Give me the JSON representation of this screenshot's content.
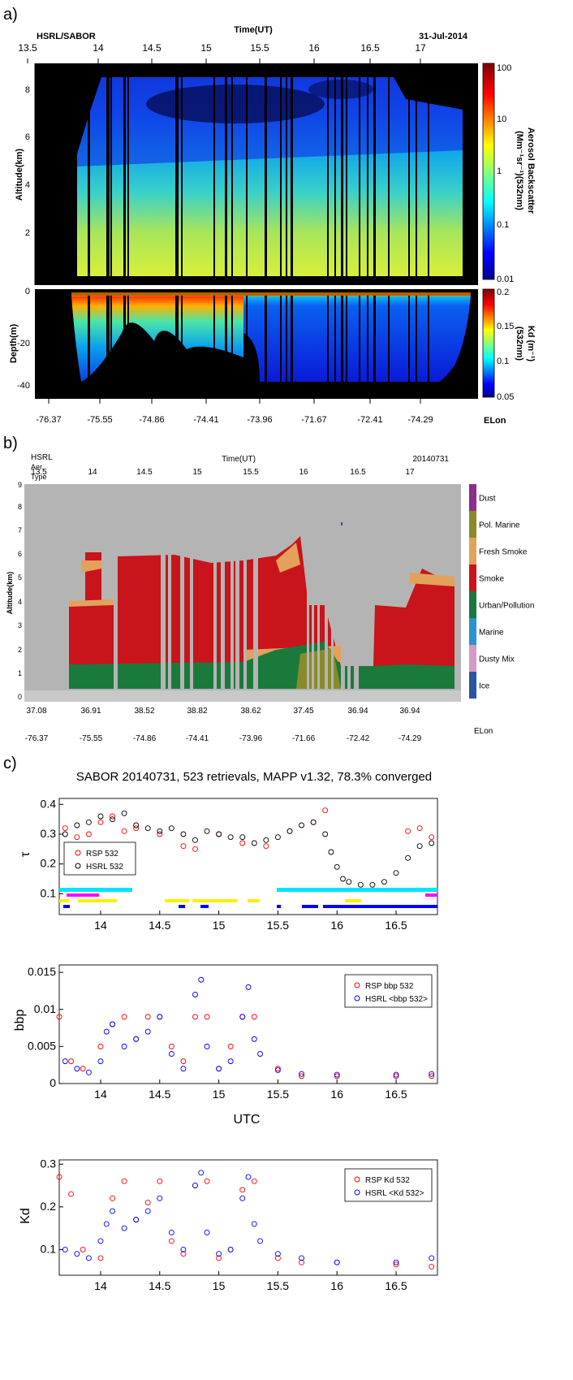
{
  "panels": {
    "a": {
      "letter": "a)",
      "corner_left": "HSRL/SABOR",
      "time_title": "Time(UT)",
      "date": "31-Jul-2014",
      "time_ticks": [
        "13.5",
        "14",
        "14.5",
        "15",
        "15.5",
        "16",
        "16.5",
        "17"
      ],
      "alt_ylabel": "Altitude(km)",
      "alt_ticks": [
        "2",
        "4",
        "6",
        "8"
      ],
      "depth_ylabel": "Depth(m)",
      "depth_ticks": [
        "0",
        "-20",
        "-40"
      ],
      "lon_ticks": [
        "-76.37",
        "-75.55",
        "-74.86",
        "-74.41",
        "-73.96",
        "-71.67",
        "-72.41",
        "-74.29"
      ],
      "lon_label": "ELon",
      "cb1_ticks": [
        "100",
        "10",
        "1",
        "0.1",
        "0.01"
      ],
      "cb1_label_1": "Aerosol Backscatter",
      "cb1_label_2": "(Mm⁻¹sr⁻¹)(532nm)",
      "cb2_ticks": [
        "0.2",
        "0.15",
        "0.1",
        "0.05"
      ],
      "cb2_label_1": "Kd (m⁻¹)",
      "cb2_label_2": "(532nm)"
    },
    "b": {
      "letter": "b)",
      "corner_1": "HSRL",
      "corner_2": "Aer.",
      "corner_3": "Type",
      "time_title": "Time(UT)",
      "date": "20140731",
      "time_ticks": [
        "13.5",
        "14",
        "14.5",
        "15",
        "15.5",
        "16",
        "16.5",
        "17"
      ],
      "alt_ylabel": "Altitude(km)",
      "alt_ticks": [
        "0",
        "1",
        "2",
        "3",
        "4",
        "5",
        "6",
        "7",
        "8",
        "9"
      ],
      "lat_ticks": [
        "37.08",
        "36.91",
        "38.52",
        "38.82",
        "38.62",
        "37.45",
        "36.94",
        "36.94"
      ],
      "lon_ticks": [
        "-76.37",
        "-75.55",
        "-74.86",
        "-74.41",
        "-73.96",
        "-71.66",
        "-72.42",
        "-74.29"
      ],
      "lon_label": "ELon",
      "types": [
        {
          "name": "Dust",
          "color": "#8d2c8d"
        },
        {
          "name": "Pol. Marine",
          "color": "#8a8a2a"
        },
        {
          "name": "Fresh Smoke",
          "color": "#e3a15a"
        },
        {
          "name": "Smoke",
          "color": "#c8141a"
        },
        {
          "name": "Urban/Pollution",
          "color": "#1a7a3c"
        },
        {
          "name": "Marine",
          "color": "#2a93d0"
        },
        {
          "name": "Dusty Mix",
          "color": "#d89ac2"
        },
        {
          "name": "Ice",
          "color": "#2a56a0"
        }
      ]
    },
    "c": {
      "letter": "c)",
      "title": "SABOR 20140731, 523 retrievals, MAPP v1.32, 78.3% converged",
      "tau": {
        "ylabel": "τ",
        "yticks": [
          "0.1",
          "0.2",
          "0.3",
          "0.4"
        ],
        "legend": [
          "RSP 532",
          "HSRL 532"
        ]
      },
      "bbp": {
        "ylabel": "bbp",
        "yticks": [
          "0",
          "0.005",
          "0.01",
          "0.015"
        ],
        "legend": [
          "RSP bbp 532",
          "HSRL <bbp 532>"
        ],
        "xlabel": "UTC"
      },
      "kd": {
        "ylabel": "Kd",
        "yticks": [
          "0.1",
          "0.2",
          "0.3"
        ],
        "legend": [
          "RSP Kd 532",
          "HSRL <Kd 532>"
        ]
      },
      "xticks": [
        "14",
        "14.5",
        "15",
        "15.5",
        "16",
        "16.5"
      ]
    }
  },
  "chart_data": [
    {
      "type": "heatmap",
      "xlabel": "Time(UT)",
      "ylabel": "Altitude(km)",
      "xlim": [
        13.45,
        17.45
      ],
      "ylim": [
        0,
        9
      ],
      "colorbar": {
        "label": "Aerosol Backscatter (Mm-1sr-1)(532nm)",
        "scale": "log",
        "range": [
          0.01,
          100
        ]
      }
    },
    {
      "type": "heatmap",
      "xlabel": "Time(UT)",
      "ylabel": "Depth(m)",
      "xlim": [
        13.45,
        17.45
      ],
      "ylim": [
        -45,
        0
      ],
      "colorbar": {
        "label": "Kd (m-1)(532nm)",
        "range": [
          0.05,
          0.2
        ]
      }
    },
    {
      "type": "heatmap",
      "xlabel": "Time(UT)",
      "ylabel": "Altitude(km)",
      "xlim": [
        13.45,
        17.45
      ],
      "ylim": [
        0,
        9
      ],
      "categories": [
        "Dust",
        "Pol. Marine",
        "Fresh Smoke",
        "Smoke",
        "Urban/Pollution",
        "Marine",
        "Dusty Mix",
        "Ice"
      ]
    },
    {
      "type": "scatter",
      "title": "SABOR 20140731, 523 retrievals, MAPP v1.32, 78.3% converged",
      "ylabel": "τ",
      "xlim": [
        13.65,
        16.85
      ],
      "ylim": [
        0.03,
        0.42
      ],
      "series": [
        {
          "name": "RSP 532",
          "color": "#ff0000",
          "x": [
            13.7,
            13.8,
            13.9,
            14.0,
            14.1,
            14.2,
            14.3,
            14.5,
            14.7,
            14.8,
            15.0,
            15.2,
            15.4,
            15.6,
            15.8,
            15.9,
            16.6,
            16.7,
            16.8
          ],
          "y": [
            0.32,
            0.29,
            0.3,
            0.34,
            0.36,
            0.31,
            0.32,
            0.3,
            0.26,
            0.25,
            0.3,
            0.27,
            0.26,
            0.31,
            0.34,
            0.38,
            0.31,
            0.32,
            0.29
          ]
        },
        {
          "name": "HSRL 532",
          "color": "#000000",
          "x": [
            13.7,
            13.8,
            13.9,
            14.0,
            14.1,
            14.2,
            14.3,
            14.4,
            14.5,
            14.6,
            14.7,
            14.8,
            14.9,
            15.0,
            15.1,
            15.2,
            15.3,
            15.4,
            15.5,
            15.6,
            15.7,
            15.8,
            15.9,
            15.95,
            16.0,
            16.05,
            16.1,
            16.2,
            16.3,
            16.4,
            16.5,
            16.6,
            16.7,
            16.8
          ],
          "y": [
            0.3,
            0.33,
            0.34,
            0.36,
            0.35,
            0.37,
            0.33,
            0.32,
            0.31,
            0.32,
            0.3,
            0.28,
            0.31,
            0.3,
            0.29,
            0.29,
            0.27,
            0.28,
            0.29,
            0.31,
            0.33,
            0.34,
            0.3,
            0.24,
            0.19,
            0.15,
            0.14,
            0.13,
            0.13,
            0.14,
            0.17,
            0.22,
            0.26,
            0.27
          ]
        }
      ]
    },
    {
      "type": "scatter",
      "ylabel": "bbp",
      "xlabel": "UTC",
      "xlim": [
        13.65,
        16.85
      ],
      "ylim": [
        0,
        0.016
      ],
      "series": [
        {
          "name": "RSP bbp 532",
          "color": "#ff0000",
          "x": [
            13.65,
            13.75,
            13.85,
            14.0,
            14.1,
            14.2,
            14.3,
            14.4,
            14.5,
            14.6,
            14.7,
            14.8,
            14.9,
            15.0,
            15.1,
            15.2,
            15.3,
            15.5,
            15.7,
            16.0,
            16.5,
            16.8
          ],
          "y": [
            0.009,
            0.003,
            0.002,
            0.005,
            0.008,
            0.009,
            0.006,
            0.009,
            0.009,
            0.005,
            0.003,
            0.009,
            0.009,
            0.002,
            0.005,
            0.009,
            0.009,
            0.002,
            0.001,
            0.001,
            0.001,
            0.001
          ]
        },
        {
          "name": "HSRL <bbp 532>",
          "color": "#0000ff",
          "x": [
            13.7,
            13.8,
            13.9,
            14.0,
            14.05,
            14.1,
            14.2,
            14.3,
            14.4,
            14.5,
            14.6,
            14.7,
            14.8,
            14.85,
            14.9,
            15.0,
            15.1,
            15.2,
            15.25,
            15.3,
            15.35,
            15.5,
            15.7,
            16.0,
            16.5,
            16.8
          ],
          "y": [
            0.003,
            0.002,
            0.0015,
            0.003,
            0.007,
            0.008,
            0.005,
            0.006,
            0.007,
            0.009,
            0.004,
            0.002,
            0.012,
            0.014,
            0.005,
            0.002,
            0.003,
            0.009,
            0.013,
            0.006,
            0.004,
            0.0018,
            0.0013,
            0.0012,
            0.0012,
            0.0013
          ]
        }
      ]
    },
    {
      "type": "scatter",
      "ylabel": "Kd",
      "xlim": [
        13.65,
        16.85
      ],
      "ylim": [
        0.04,
        0.31
      ],
      "series": [
        {
          "name": "RSP Kd 532",
          "color": "#ff0000",
          "x": [
            13.65,
            13.75,
            13.85,
            14.0,
            14.1,
            14.2,
            14.3,
            14.4,
            14.5,
            14.6,
            14.7,
            14.8,
            14.9,
            15.0,
            15.1,
            15.2,
            15.3,
            15.5,
            15.7,
            16.0,
            16.5,
            16.8
          ],
          "y": [
            0.27,
            0.23,
            0.1,
            0.08,
            0.22,
            0.26,
            0.17,
            0.21,
            0.26,
            0.12,
            0.09,
            0.25,
            0.26,
            0.08,
            0.1,
            0.24,
            0.26,
            0.08,
            0.07,
            0.07,
            0.065,
            0.06
          ]
        },
        {
          "name": "HSRL <Kd 532>",
          "color": "#0000ff",
          "x": [
            13.7,
            13.8,
            13.9,
            14.0,
            14.05,
            14.1,
            14.2,
            14.3,
            14.4,
            14.5,
            14.6,
            14.7,
            14.8,
            14.85,
            14.9,
            15.0,
            15.1,
            15.2,
            15.25,
            15.3,
            15.35,
            15.5,
            15.7,
            16.0,
            16.5,
            16.8
          ],
          "y": [
            0.1,
            0.09,
            0.08,
            0.12,
            0.16,
            0.19,
            0.15,
            0.17,
            0.19,
            0.22,
            0.14,
            0.1,
            0.25,
            0.28,
            0.14,
            0.09,
            0.1,
            0.22,
            0.27,
            0.16,
            0.12,
            0.09,
            0.08,
            0.07,
            0.07,
            0.08
          ]
        }
      ]
    }
  ]
}
